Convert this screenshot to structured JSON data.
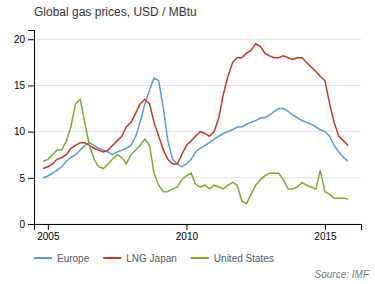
{
  "chart_data": {
    "type": "line",
    "title": "Global gas prices, USD / MBtu",
    "annotations": [
      "Source: IMF"
    ],
    "x": [
      2004.83,
      2005.0,
      2005.17,
      2005.33,
      2005.5,
      2005.67,
      2005.83,
      2006.0,
      2006.17,
      2006.33,
      2006.5,
      2006.67,
      2006.83,
      2007.0,
      2007.17,
      2007.33,
      2007.5,
      2007.67,
      2007.83,
      2008.0,
      2008.17,
      2008.33,
      2008.5,
      2008.67,
      2008.83,
      2009.0,
      2009.17,
      2009.33,
      2009.5,
      2009.67,
      2009.83,
      2010.0,
      2010.17,
      2010.33,
      2010.5,
      2010.67,
      2010.83,
      2011.0,
      2011.17,
      2011.33,
      2011.5,
      2011.67,
      2011.83,
      2012.0,
      2012.17,
      2012.33,
      2012.5,
      2012.67,
      2012.83,
      2013.0,
      2013.17,
      2013.33,
      2013.5,
      2013.67,
      2013.83,
      2014.0,
      2014.17,
      2014.33,
      2014.5,
      2014.67,
      2014.83,
      2015.0,
      2015.17,
      2015.33,
      2015.5,
      2015.67,
      2015.83
    ],
    "series": [
      {
        "name": "Europe",
        "color": "#5b9bd5",
        "values": [
          5.0,
          5.2,
          5.5,
          5.8,
          6.2,
          6.8,
          7.2,
          7.5,
          8.0,
          8.5,
          8.8,
          8.5,
          8.2,
          8.0,
          7.8,
          7.5,
          7.8,
          8.0,
          8.2,
          8.5,
          9.5,
          11.0,
          13.0,
          14.5,
          15.8,
          15.5,
          12.5,
          9.0,
          7.0,
          6.5,
          6.2,
          6.5,
          7.0,
          7.8,
          8.2,
          8.5,
          8.8,
          9.2,
          9.5,
          9.8,
          10.0,
          10.2,
          10.5,
          10.5,
          10.8,
          11.0,
          11.2,
          11.5,
          11.5,
          11.8,
          12.2,
          12.5,
          12.5,
          12.2,
          11.8,
          11.5,
          11.2,
          11.0,
          10.8,
          10.5,
          10.2,
          10.0,
          9.5,
          8.5,
          7.8,
          7.2,
          6.8
        ]
      },
      {
        "name": "LNG Japan",
        "color": "#c0392b",
        "values": [
          6.0,
          6.2,
          6.5,
          7.0,
          7.2,
          7.5,
          8.2,
          8.5,
          8.8,
          8.8,
          8.5,
          8.2,
          8.0,
          7.8,
          8.0,
          8.5,
          9.0,
          9.5,
          10.5,
          11.0,
          12.0,
          13.0,
          13.5,
          13.0,
          11.0,
          9.5,
          8.0,
          7.0,
          6.5,
          6.5,
          7.5,
          8.5,
          9.0,
          9.5,
          10.0,
          9.8,
          9.5,
          10.0,
          11.5,
          14.0,
          16.0,
          17.5,
          18.0,
          18.0,
          18.5,
          18.8,
          19.5,
          19.2,
          18.5,
          18.2,
          18.0,
          18.0,
          18.2,
          18.0,
          17.8,
          18.0,
          18.0,
          17.5,
          17.0,
          16.5,
          16.0,
          15.5,
          13.0,
          11.0,
          9.5,
          9.0,
          8.5
        ]
      },
      {
        "name": "United States",
        "color": "#7daa33",
        "values": [
          6.8,
          7.0,
          7.5,
          8.0,
          8.0,
          9.0,
          10.5,
          13.0,
          13.5,
          11.0,
          8.5,
          7.0,
          6.2,
          6.0,
          6.5,
          7.0,
          7.5,
          7.2,
          6.5,
          7.5,
          8.0,
          8.5,
          9.2,
          8.5,
          5.5,
          4.2,
          3.5,
          3.5,
          3.8,
          4.0,
          4.8,
          5.2,
          5.5,
          4.3,
          4.0,
          4.2,
          3.8,
          4.2,
          4.0,
          3.8,
          4.2,
          4.5,
          4.2,
          2.5,
          2.2,
          3.2,
          4.2,
          4.8,
          5.2,
          5.5,
          5.5,
          5.5,
          4.8,
          3.8,
          3.8,
          4.0,
          4.5,
          4.2,
          4.0,
          3.8,
          5.8,
          3.5,
          3.2,
          2.8,
          2.8,
          2.8,
          2.7
        ]
      }
    ],
    "xlim": [
      2004.5,
      2016.3
    ],
    "xticks": [
      2005,
      2010,
      2015
    ],
    "ylim": [
      0,
      21
    ],
    "yticks": [
      0,
      5,
      10,
      15,
      20
    ],
    "grid": true,
    "legend": "bottom"
  }
}
